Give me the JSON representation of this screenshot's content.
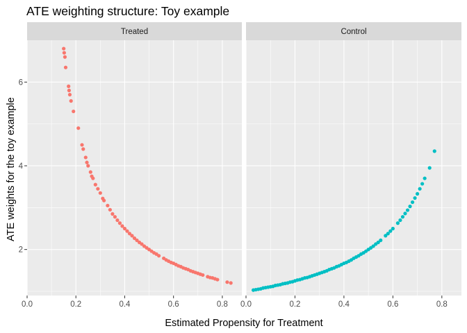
{
  "chart_data": {
    "type": "scatter",
    "title": "ATE weighting structure: Toy example",
    "xlabel": "Estimated Propensity for Treatment",
    "ylabel": "ATE weights for the toy example",
    "xlim": [
      0,
      0.88
    ],
    "ylim": [
      0.9,
      7.0
    ],
    "x_ticks": [
      0.0,
      0.2,
      0.4,
      0.6,
      0.8
    ],
    "x_tick_labels": [
      "0.0",
      "0.2",
      "0.4",
      "0.6",
      "0.8"
    ],
    "y_ticks": [
      2,
      4,
      6
    ],
    "y_tick_labels": [
      "2",
      "4",
      "6"
    ],
    "grid": true,
    "legend": "none",
    "facets": [
      {
        "label": "Treated",
        "color": "#F8766D",
        "x": [
          0.15,
          0.152,
          0.155,
          0.158,
          0.17,
          0.172,
          0.175,
          0.18,
          0.19,
          0.21,
          0.225,
          0.23,
          0.24,
          0.245,
          0.25,
          0.26,
          0.265,
          0.27,
          0.28,
          0.29,
          0.3,
          0.31,
          0.315,
          0.33,
          0.34,
          0.35,
          0.36,
          0.37,
          0.38,
          0.39,
          0.4,
          0.41,
          0.42,
          0.43,
          0.44,
          0.45,
          0.46,
          0.47,
          0.48,
          0.49,
          0.5,
          0.51,
          0.52,
          0.53,
          0.54,
          0.56,
          0.57,
          0.58,
          0.59,
          0.6,
          0.61,
          0.62,
          0.63,
          0.64,
          0.65,
          0.66,
          0.67,
          0.68,
          0.69,
          0.7,
          0.71,
          0.72,
          0.74,
          0.75,
          0.76,
          0.77,
          0.78,
          0.82,
          0.835
        ],
        "y": [
          6.8,
          6.7,
          6.6,
          6.35,
          5.9,
          5.8,
          5.7,
          5.55,
          5.3,
          4.9,
          4.5,
          4.4,
          4.2,
          4.08,
          4.0,
          3.85,
          3.75,
          3.7,
          3.55,
          3.45,
          3.35,
          3.22,
          3.17,
          3.05,
          2.95,
          2.85,
          2.78,
          2.7,
          2.63,
          2.56,
          2.5,
          2.44,
          2.38,
          2.33,
          2.27,
          2.22,
          2.17,
          2.13,
          2.08,
          2.04,
          2.0,
          1.96,
          1.92,
          1.89,
          1.85,
          1.79,
          1.75,
          1.72,
          1.69,
          1.67,
          1.64,
          1.61,
          1.59,
          1.56,
          1.54,
          1.52,
          1.49,
          1.47,
          1.45,
          1.43,
          1.41,
          1.39,
          1.35,
          1.33,
          1.32,
          1.3,
          1.28,
          1.22,
          1.2
        ]
      },
      {
        "label": "Control",
        "color": "#00BFC4",
        "x": [
          0.03,
          0.04,
          0.05,
          0.06,
          0.07,
          0.08,
          0.09,
          0.1,
          0.11,
          0.12,
          0.13,
          0.14,
          0.15,
          0.16,
          0.17,
          0.18,
          0.19,
          0.2,
          0.21,
          0.22,
          0.23,
          0.24,
          0.25,
          0.26,
          0.27,
          0.28,
          0.29,
          0.3,
          0.31,
          0.32,
          0.33,
          0.34,
          0.35,
          0.36,
          0.37,
          0.38,
          0.39,
          0.4,
          0.41,
          0.42,
          0.43,
          0.44,
          0.45,
          0.46,
          0.47,
          0.48,
          0.49,
          0.5,
          0.51,
          0.52,
          0.53,
          0.54,
          0.55,
          0.57,
          0.58,
          0.59,
          0.6,
          0.62,
          0.63,
          0.64,
          0.65,
          0.66,
          0.67,
          0.68,
          0.69,
          0.7,
          0.71,
          0.72,
          0.73,
          0.75,
          0.77
        ],
        "y": [
          1.03,
          1.04,
          1.05,
          1.06,
          1.08,
          1.09,
          1.1,
          1.11,
          1.12,
          1.14,
          1.15,
          1.16,
          1.18,
          1.19,
          1.2,
          1.22,
          1.23,
          1.25,
          1.27,
          1.28,
          1.3,
          1.32,
          1.33,
          1.35,
          1.37,
          1.39,
          1.41,
          1.43,
          1.45,
          1.47,
          1.49,
          1.52,
          1.54,
          1.56,
          1.59,
          1.61,
          1.64,
          1.67,
          1.69,
          1.72,
          1.75,
          1.79,
          1.82,
          1.85,
          1.89,
          1.92,
          1.96,
          2.0,
          2.04,
          2.08,
          2.13,
          2.17,
          2.22,
          2.33,
          2.38,
          2.44,
          2.5,
          2.63,
          2.7,
          2.78,
          2.86,
          2.94,
          3.03,
          3.13,
          3.23,
          3.33,
          3.45,
          3.57,
          3.7,
          3.95,
          4.35
        ]
      }
    ]
  }
}
